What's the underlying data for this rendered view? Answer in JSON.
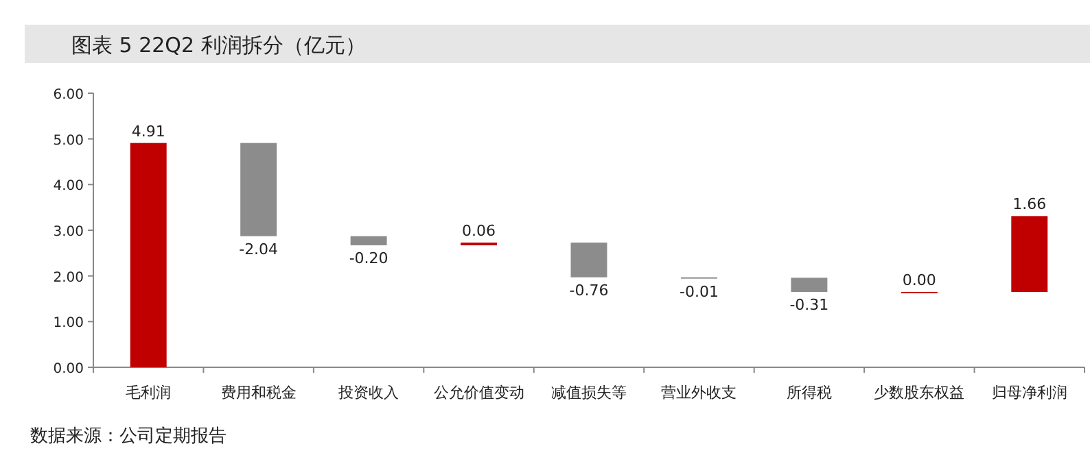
{
  "chart_data": {
    "type": "bar",
    "title": "图表  5 22Q2 利润拆分（亿元）",
    "categories": [
      "毛利润",
      "费用和税金",
      "投资收入",
      "公允价值变动",
      "减值损失等",
      "营业外收支",
      "所得税",
      "少数股东权益",
      "归母净利润"
    ],
    "values": [
      4.91,
      -2.04,
      -0.2,
      0.06,
      -0.76,
      -0.01,
      -0.31,
      0,
      1.66
    ],
    "base": [
      0,
      4.91,
      2.87,
      2.67,
      2.73,
      1.97,
      1.96,
      1.65,
      1.65
    ],
    "colors": [
      "#c00000",
      "#8c8c8c",
      "#8c8c8c",
      "#c00000",
      "#8c8c8c",
      "#8c8c8c",
      "#8c8c8c",
      "#c00000",
      "#c00000"
    ],
    "value_labels": [
      "4.91",
      "-2.04",
      "-0.20",
      "0.06",
      "-0.76",
      "-0.01",
      "-0.31",
      "0.00",
      "1.66"
    ],
    "ylim": [
      0,
      6
    ],
    "yticks": [
      {
        "value": 0,
        "label": "0.00"
      },
      {
        "value": 1,
        "label": "1.00"
      },
      {
        "value": 2,
        "label": "2.00"
      },
      {
        "value": 3,
        "label": "3.00"
      },
      {
        "value": 4,
        "label": "4.00"
      },
      {
        "value": 5,
        "label": "5.00"
      },
      {
        "value": 6,
        "label": "6.00"
      }
    ],
    "annotations": [
      "数据来源：公司定期报告"
    ]
  }
}
